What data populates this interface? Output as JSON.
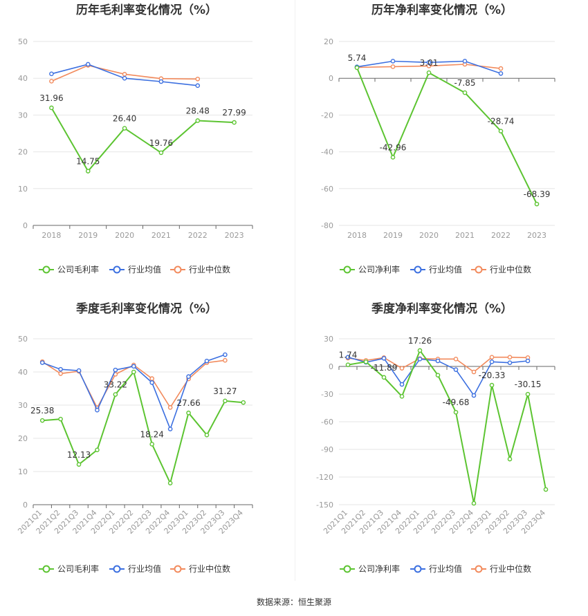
{
  "source_label": "数据来源：恒生聚源",
  "colors": {
    "company": "#5cc431",
    "avg": "#3b6fe0",
    "median": "#f28a5c"
  },
  "chart_data": [
    {
      "id": "annual-gross",
      "type": "line",
      "title": "历年毛利率变化情况（%）",
      "categories": [
        "2018",
        "2019",
        "2020",
        "2021",
        "2022",
        "2023"
      ],
      "ylim": [
        0,
        50
      ],
      "yticks": [
        0,
        10,
        20,
        30,
        40,
        50
      ],
      "series": [
        {
          "name": "公司毛利率",
          "key": "company",
          "values": [
            31.96,
            14.75,
            26.4,
            19.76,
            28.48,
            27.99
          ],
          "labels": [
            "31.96",
            "14.75",
            "26.40",
            "19.76",
            "28.48",
            "27.99"
          ]
        },
        {
          "name": "行业均值",
          "key": "avg",
          "values": [
            41.2,
            43.8,
            40.0,
            39.1,
            38.0,
            null
          ]
        },
        {
          "name": "行业中位数",
          "key": "median",
          "values": [
            39.2,
            43.5,
            41.1,
            39.9,
            39.8,
            null
          ]
        }
      ],
      "legend": "bottom",
      "grid": true
    },
    {
      "id": "annual-net",
      "type": "line",
      "title": "历年净利率变化情况（%）",
      "categories": [
        "2018",
        "2019",
        "2020",
        "2021",
        "2022",
        "2023"
      ],
      "ylim": [
        -80,
        20
      ],
      "yticks": [
        -80,
        -60,
        -40,
        -20,
        0,
        20
      ],
      "series": [
        {
          "name": "公司净利率",
          "key": "company",
          "values": [
            5.74,
            -42.96,
            3.01,
            -7.85,
            -28.74,
            -68.39
          ],
          "labels": [
            "5.74",
            "-42.96",
            "3.01",
            "-7.85",
            "-28.74",
            "-68.39"
          ]
        },
        {
          "name": "行业均值",
          "key": "avg",
          "values": [
            6.2,
            9.3,
            8.6,
            9.3,
            2.6,
            null
          ]
        },
        {
          "name": "行业中位数",
          "key": "median",
          "values": [
            5.9,
            6.3,
            6.7,
            7.6,
            5.3,
            null
          ]
        }
      ],
      "legend": "bottom",
      "grid": true
    },
    {
      "id": "quarterly-gross",
      "type": "line",
      "title": "季度毛利率变化情况（%）",
      "categories": [
        "2021Q1",
        "2021Q2",
        "2021Q3",
        "2021Q4",
        "2022Q1",
        "2022Q2",
        "2022Q3",
        "2022Q4",
        "2023Q1",
        "2023Q2",
        "2023Q3",
        "2023Q4"
      ],
      "ylim": [
        0,
        50
      ],
      "yticks": [
        0,
        10,
        20,
        30,
        40,
        50
      ],
      "series": [
        {
          "name": "公司毛利率",
          "key": "company",
          "values": [
            25.38,
            25.8,
            12.13,
            16.5,
            33.22,
            40.0,
            18.24,
            6.5,
            27.66,
            21.0,
            31.27,
            30.8
          ],
          "labels": [
            "25.38",
            "",
            "12.13",
            "",
            "33.22",
            "",
            "18.24",
            "",
            "27.66",
            "",
            "31.27",
            ""
          ]
        },
        {
          "name": "行业均值",
          "key": "avg",
          "values": [
            42.8,
            40.8,
            40.4,
            28.5,
            40.6,
            41.7,
            36.8,
            22.8,
            38.6,
            43.3,
            45.2,
            null
          ]
        },
        {
          "name": "行业中位数",
          "key": "median",
          "values": [
            43.1,
            39.5,
            40.2,
            29.2,
            39.3,
            42.1,
            38.0,
            29.3,
            37.9,
            42.8,
            43.5,
            null
          ]
        }
      ],
      "legend": "bottom",
      "grid": true
    },
    {
      "id": "quarterly-net",
      "type": "line",
      "title": "季度净利率变化情况（%）",
      "categories": [
        "2021Q1",
        "2021Q2",
        "2021Q3",
        "2021Q4",
        "2022Q1",
        "2022Q2",
        "2022Q3",
        "2022Q4",
        "2023Q1",
        "2023Q2",
        "2023Q3",
        "2023Q4"
      ],
      "ylim": [
        -150,
        30
      ],
      "yticks": [
        -150,
        -120,
        -90,
        -60,
        -30,
        0,
        30
      ],
      "series": [
        {
          "name": "公司净利率",
          "key": "company",
          "values": [
            1.74,
            5.0,
            -11.89,
            -32.5,
            17.26,
            -9.5,
            -49.68,
            -148.5,
            -20.33,
            -100.5,
            -30.15,
            -133.5
          ],
          "labels": [
            "1.74",
            "",
            "-11.89",
            "",
            "17.26",
            "",
            "-49.68",
            "",
            "-20.33",
            "",
            "-30.15",
            ""
          ]
        },
        {
          "name": "行业均值",
          "key": "avg",
          "values": [
            10.0,
            4.5,
            8.8,
            -19.5,
            8.0,
            6.0,
            -3.5,
            -31.5,
            5.0,
            4.0,
            6.0,
            null
          ]
        },
        {
          "name": "行业中位数",
          "key": "median",
          "values": [
            9.0,
            6.5,
            9.5,
            -2.0,
            8.5,
            8.0,
            8.0,
            -6.0,
            10.0,
            10.0,
            9.5,
            null
          ]
        }
      ],
      "legend": "bottom",
      "grid": true
    }
  ]
}
